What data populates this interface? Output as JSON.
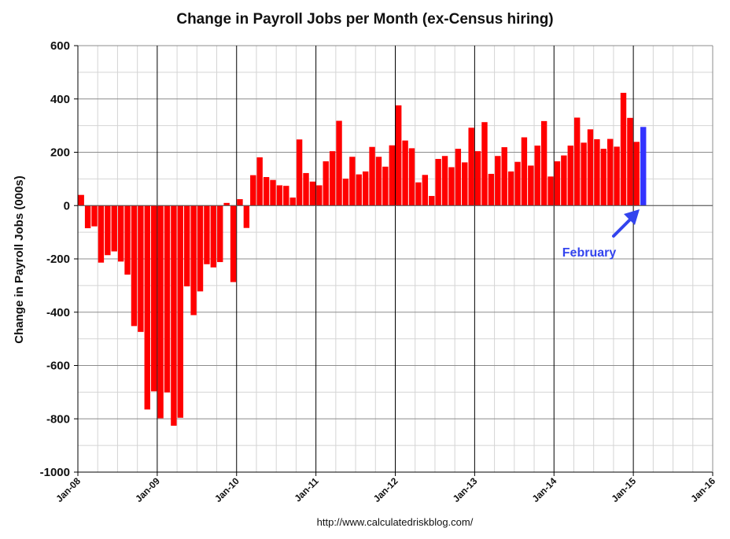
{
  "chart_data": {
    "type": "bar",
    "title": "Change in Payroll Jobs per Month (ex-Census hiring)",
    "xlabel": "",
    "ylabel": "Change in Payroll Jobs (000s)",
    "ylim": [
      -1000,
      600
    ],
    "yticks": [
      600,
      400,
      200,
      0,
      -200,
      -400,
      -600,
      -800,
      -1000
    ],
    "xticks": [
      "Jan-08",
      "Jan-09",
      "Jan-10",
      "Jan-11",
      "Jan-12",
      "Jan-13",
      "Jan-14",
      "Jan-15",
      "Jan-16"
    ],
    "start_month": "Jan-08",
    "months_total": 96,
    "grid": true,
    "series": [
      {
        "name": "Change in Payroll Jobs",
        "color": "#ff0000",
        "values": [
          40,
          -85,
          -78,
          -214,
          -186,
          -172,
          -210,
          -259,
          -452,
          -474,
          -765,
          -697,
          -798,
          -701,
          -826,
          -796,
          -303,
          -411,
          -322,
          -220,
          -232,
          -212,
          10,
          -287,
          24,
          -84,
          114,
          181,
          107,
          96,
          76,
          74,
          30,
          248,
          122,
          90,
          76,
          166,
          204,
          318,
          101,
          183,
          117,
          128,
          220,
          183,
          146,
          226,
          376,
          244,
          215,
          87,
          115,
          36,
          175,
          186,
          144,
          213,
          162,
          292,
          204,
          313,
          119,
          186,
          219,
          128,
          164,
          256,
          150,
          225,
          317,
          109,
          166,
          188,
          225,
          330,
          236,
          286,
          249,
          213,
          250,
          221,
          423,
          329,
          239
        ]
      },
      {
        "name": "February",
        "color": "#3333ff",
        "month_index": 85,
        "value": 295
      }
    ],
    "annotation": {
      "text": "February",
      "color": "#3344ee"
    },
    "source": "http://www.calculatedriskblog.com/"
  }
}
